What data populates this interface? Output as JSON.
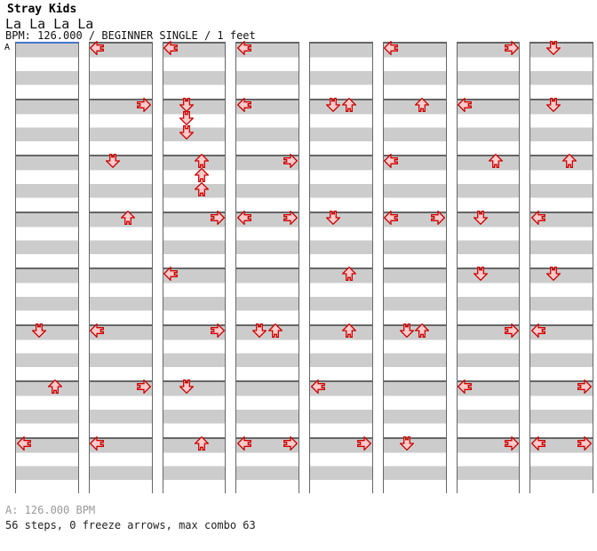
{
  "header": {
    "artist": "Stray Kids",
    "song": "La La La La",
    "meta": "BPM: 126.000 / BEGINNER SINGLE / 1 feet"
  },
  "footer": {
    "bpm_line": "A: 126.000 BPM",
    "summary": "56 steps, 0 freeze arrows, max combo 63"
  },
  "colors": {
    "stripe_gray": "#CCCCCC",
    "section_border": "#666666",
    "marker_blue": "#4477CC",
    "arrow_fill": "#FFCCCC",
    "arrow_stroke": "#CC0000",
    "footer_gray": "#999999"
  },
  "chart": {
    "marker_label": "A",
    "columns": 8,
    "rows_per_column": 32,
    "rows_per_section": 4,
    "sections_per_column": 8,
    "lanes": [
      "L",
      "D",
      "U",
      "R"
    ],
    "notes": [
      {
        "c": 1,
        "r": 20,
        "d": "D"
      },
      {
        "c": 1,
        "r": 24,
        "d": "U"
      },
      {
        "c": 1,
        "r": 28,
        "d": "L"
      },
      {
        "c": 2,
        "r": 0,
        "d": "L"
      },
      {
        "c": 2,
        "r": 4,
        "d": "R"
      },
      {
        "c": 2,
        "r": 8,
        "d": "D"
      },
      {
        "c": 2,
        "r": 12,
        "d": "U"
      },
      {
        "c": 2,
        "r": 20,
        "d": "L"
      },
      {
        "c": 2,
        "r": 24,
        "d": "R"
      },
      {
        "c": 2,
        "r": 28,
        "d": "L"
      },
      {
        "c": 3,
        "r": 0,
        "d": "L"
      },
      {
        "c": 3,
        "r": 4,
        "d": "D"
      },
      {
        "c": 3,
        "r": 5,
        "d": "D"
      },
      {
        "c": 3,
        "r": 6,
        "d": "D"
      },
      {
        "c": 3,
        "r": 8,
        "d": "U"
      },
      {
        "c": 3,
        "r": 9,
        "d": "U"
      },
      {
        "c": 3,
        "r": 10,
        "d": "U"
      },
      {
        "c": 3,
        "r": 12,
        "d": "R"
      },
      {
        "c": 3,
        "r": 16,
        "d": "L"
      },
      {
        "c": 3,
        "r": 20,
        "d": "R"
      },
      {
        "c": 3,
        "r": 24,
        "d": "D"
      },
      {
        "c": 3,
        "r": 28,
        "d": "U"
      },
      {
        "c": 4,
        "r": 0,
        "d": "L"
      },
      {
        "c": 4,
        "r": 4,
        "d": "L"
      },
      {
        "c": 4,
        "r": 8,
        "d": "R"
      },
      {
        "c": 4,
        "r": 12,
        "d": "L"
      },
      {
        "c": 4,
        "r": 12,
        "d": "R"
      },
      {
        "c": 4,
        "r": 20,
        "d": "D"
      },
      {
        "c": 4,
        "r": 20,
        "d": "U"
      },
      {
        "c": 4,
        "r": 28,
        "d": "L"
      },
      {
        "c": 4,
        "r": 28,
        "d": "R"
      },
      {
        "c": 5,
        "r": 4,
        "d": "D"
      },
      {
        "c": 5,
        "r": 4,
        "d": "U"
      },
      {
        "c": 5,
        "r": 12,
        "d": "D"
      },
      {
        "c": 5,
        "r": 16,
        "d": "U"
      },
      {
        "c": 5,
        "r": 20,
        "d": "U"
      },
      {
        "c": 5,
        "r": 24,
        "d": "L"
      },
      {
        "c": 5,
        "r": 28,
        "d": "R"
      },
      {
        "c": 6,
        "r": 0,
        "d": "L"
      },
      {
        "c": 6,
        "r": 4,
        "d": "U"
      },
      {
        "c": 6,
        "r": 8,
        "d": "L"
      },
      {
        "c": 6,
        "r": 12,
        "d": "L"
      },
      {
        "c": 6,
        "r": 12,
        "d": "R"
      },
      {
        "c": 6,
        "r": 20,
        "d": "D"
      },
      {
        "c": 6,
        "r": 20,
        "d": "U"
      },
      {
        "c": 6,
        "r": 28,
        "d": "D"
      },
      {
        "c": 7,
        "r": 0,
        "d": "R"
      },
      {
        "c": 7,
        "r": 4,
        "d": "L"
      },
      {
        "c": 7,
        "r": 8,
        "d": "U"
      },
      {
        "c": 7,
        "r": 12,
        "d": "D"
      },
      {
        "c": 7,
        "r": 16,
        "d": "D"
      },
      {
        "c": 7,
        "r": 20,
        "d": "R"
      },
      {
        "c": 7,
        "r": 24,
        "d": "L"
      },
      {
        "c": 7,
        "r": 28,
        "d": "R"
      },
      {
        "c": 8,
        "r": 0,
        "d": "D"
      },
      {
        "c": 8,
        "r": 4,
        "d": "D"
      },
      {
        "c": 8,
        "r": 8,
        "d": "U"
      },
      {
        "c": 8,
        "r": 12,
        "d": "L"
      },
      {
        "c": 8,
        "r": 16,
        "d": "D"
      },
      {
        "c": 8,
        "r": 20,
        "d": "L"
      },
      {
        "c": 8,
        "r": 24,
        "d": "R"
      },
      {
        "c": 8,
        "r": 28,
        "d": "L"
      },
      {
        "c": 8,
        "r": 28,
        "d": "R"
      }
    ]
  }
}
